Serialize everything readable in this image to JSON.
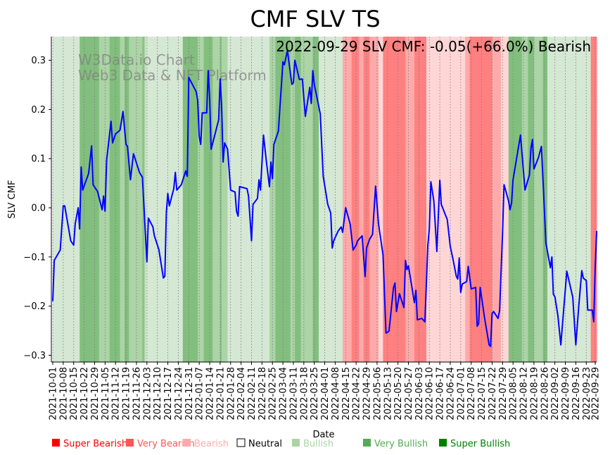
{
  "chart_data": {
    "type": "line",
    "title": "CMF SLV TS",
    "annotation": "2022-09-29 SLV CMF: -0.05(+66.0%) Bearish",
    "watermark": [
      "W3Data.io Chart",
      "Web3 Data & NFT Platform"
    ],
    "xlabel": "Date",
    "ylabel": "SLV CMF",
    "ylim": [
      -0.31,
      0.35
    ],
    "xlim_days": [
      0,
      364
    ],
    "start_date": "2021-10-01",
    "yticks": [
      0.3,
      0.2,
      0.1,
      0.0,
      -0.1,
      -0.2,
      -0.3
    ],
    "ytick_labels": [
      "0.3",
      "0.2",
      "0.1",
      "0.0",
      "−0.1",
      "−0.2",
      "−0.3"
    ],
    "xtick_labels": [
      "2021-10-01",
      "2021-10-08",
      "2021-10-15",
      "2021-10-22",
      "2021-10-29",
      "2021-11-05",
      "2021-11-12",
      "2021-11-19",
      "2021-11-26",
      "2021-12-03",
      "2021-12-10",
      "2021-12-17",
      "2021-12-24",
      "2021-12-31",
      "2022-01-07",
      "2022-01-14",
      "2022-01-21",
      "2022-01-28",
      "2022-02-04",
      "2022-02-11",
      "2022-02-18",
      "2022-02-25",
      "2022-03-04",
      "2022-03-11",
      "2022-03-18",
      "2022-03-25",
      "2022-04-01",
      "2022-04-08",
      "2022-04-15",
      "2022-04-22",
      "2022-04-29",
      "2022-05-06",
      "2022-05-13",
      "2022-05-20",
      "2022-05-27",
      "2022-06-03",
      "2022-06-10",
      "2022-06-17",
      "2022-06-24",
      "2022-07-01",
      "2022-07-08",
      "2022-07-15",
      "2022-07-22",
      "2022-07-29",
      "2022-08-05",
      "2022-08-12",
      "2022-08-19",
      "2022-08-26",
      "2022-09-02",
      "2022-09-09",
      "2022-09-16",
      "2022-09-23",
      "2022-09-29"
    ],
    "xtick_days": [
      0,
      7,
      14,
      21,
      28,
      35,
      42,
      49,
      56,
      63,
      70,
      77,
      84,
      91,
      98,
      105,
      112,
      119,
      126,
      133,
      140,
      147,
      154,
      161,
      168,
      175,
      182,
      189,
      196,
      203,
      210,
      217,
      224,
      231,
      238,
      245,
      252,
      259,
      266,
      273,
      280,
      287,
      294,
      301,
      308,
      315,
      322,
      329,
      336,
      343,
      350,
      357,
      363
    ],
    "grid": "vertical dotted",
    "series": [
      {
        "name": "SLV CMF",
        "color": "#0000ff",
        "points": [
          [
            0,
            -0.19
          ],
          [
            1,
            -0.107
          ],
          [
            5,
            -0.086
          ],
          [
            7,
            0.004
          ],
          [
            8,
            0.004
          ],
          [
            12,
            -0.067
          ],
          [
            14,
            -0.076
          ],
          [
            15,
            -0.033
          ],
          [
            17,
            0
          ],
          [
            18,
            -0.043
          ],
          [
            19,
            0.083
          ],
          [
            20,
            0.036
          ],
          [
            24,
            0.07
          ],
          [
            26,
            0.126
          ],
          [
            27,
            0.047
          ],
          [
            30,
            0.033
          ],
          [
            33,
            -0.004
          ],
          [
            34,
            0.024
          ],
          [
            35,
            -0.007
          ],
          [
            36,
            0.096
          ],
          [
            39,
            0.176
          ],
          [
            40,
            0.132
          ],
          [
            42,
            0.15
          ],
          [
            45,
            0.158
          ],
          [
            47,
            0.196
          ],
          [
            49,
            0.129
          ],
          [
            50,
            0.125
          ],
          [
            52,
            0.057
          ],
          [
            54,
            0.11
          ],
          [
            58,
            0.072
          ],
          [
            60,
            0.062
          ],
          [
            63,
            -0.11
          ],
          [
            64,
            -0.021
          ],
          [
            67,
            -0.039
          ],
          [
            68,
            -0.057
          ],
          [
            71,
            -0.085
          ],
          [
            74,
            -0.143
          ],
          [
            75,
            -0.139
          ],
          [
            76,
            -0.01
          ],
          [
            77,
            0.029
          ],
          [
            78,
            0.004
          ],
          [
            81,
            0.039
          ],
          [
            82,
            0.072
          ],
          [
            83,
            0.036
          ],
          [
            86,
            0.047
          ],
          [
            89,
            0.075
          ],
          [
            90,
            0.064
          ],
          [
            91,
            0.265
          ],
          [
            96,
            0.236
          ],
          [
            97,
            0.218
          ],
          [
            98,
            0.146
          ],
          [
            99,
            0.129
          ],
          [
            100,
            0.193
          ],
          [
            103,
            0.193
          ],
          [
            104,
            0.279
          ],
          [
            105,
            0.222
          ],
          [
            106,
            0.119
          ],
          [
            111,
            0.179
          ],
          [
            112,
            0.262
          ],
          [
            113,
            0.208
          ],
          [
            114,
            0.093
          ],
          [
            115,
            0.132
          ],
          [
            117,
            0.119
          ],
          [
            119,
            0.036
          ],
          [
            122,
            0.032
          ],
          [
            123,
            -0.007
          ],
          [
            124,
            -0.017
          ],
          [
            125,
            0.043
          ],
          [
            130,
            0.039
          ],
          [
            131,
            0.024
          ],
          [
            133,
            -0.067
          ],
          [
            134,
            0.007
          ],
          [
            137,
            0.019
          ],
          [
            138,
            0.057
          ],
          [
            139,
            0.036
          ],
          [
            141,
            0.148
          ],
          [
            143,
            0.093
          ],
          [
            145,
            0.043
          ],
          [
            146,
            0.093
          ],
          [
            147,
            0.059
          ],
          [
            148,
            0.129
          ],
          [
            151,
            0.156
          ],
          [
            154,
            0.297
          ],
          [
            155,
            0.291
          ],
          [
            157,
            0.32
          ],
          [
            160,
            0.251
          ],
          [
            161,
            0.254
          ],
          [
            162,
            0.3
          ],
          [
            165,
            0.261
          ],
          [
            167,
            0.262
          ],
          [
            169,
            0.186
          ],
          [
            172,
            0.245
          ],
          [
            173,
            0.212
          ],
          [
            174,
            0.279
          ],
          [
            175,
            0.251
          ],
          [
            179,
            0.191
          ],
          [
            181,
            0.064
          ],
          [
            184,
            0.007
          ],
          [
            186,
            -0.011
          ],
          [
            187,
            -0.082
          ],
          [
            188,
            -0.067
          ],
          [
            191,
            -0.047
          ],
          [
            193,
            -0.039
          ],
          [
            194,
            -0.05
          ],
          [
            196,
            0
          ],
          [
            199,
            -0.033
          ],
          [
            201,
            -0.086
          ],
          [
            203,
            -0.076
          ],
          [
            204,
            -0.067
          ],
          [
            207,
            -0.057
          ],
          [
            209,
            -0.14
          ],
          [
            210,
            -0.082
          ],
          [
            212,
            -0.064
          ],
          [
            214,
            -0.054
          ],
          [
            216,
            0.044
          ],
          [
            218,
            -0.033
          ],
          [
            221,
            -0.096
          ],
          [
            223,
            -0.255
          ],
          [
            225,
            -0.251
          ],
          [
            228,
            -0.162
          ],
          [
            229,
            -0.153
          ],
          [
            230,
            -0.211
          ],
          [
            232,
            -0.175
          ],
          [
            235,
            -0.203
          ],
          [
            236,
            -0.107
          ],
          [
            237,
            -0.126
          ],
          [
            238,
            -0.118
          ],
          [
            242,
            -0.193
          ],
          [
            243,
            -0.168
          ],
          [
            244,
            -0.228
          ],
          [
            247,
            -0.225
          ],
          [
            249,
            -0.232
          ],
          [
            251,
            -0.076
          ],
          [
            252,
            -0.043
          ],
          [
            253,
            0.053
          ],
          [
            255,
            0.014
          ],
          [
            257,
            -0.089
          ],
          [
            259,
            0.056
          ],
          [
            260,
            0.007
          ],
          [
            264,
            -0.024
          ],
          [
            266,
            -0.079
          ],
          [
            268,
            -0.107
          ],
          [
            270,
            -0.139
          ],
          [
            271,
            -0.145
          ],
          [
            272,
            -0.102
          ],
          [
            273,
            -0.172
          ],
          [
            274,
            -0.155
          ],
          [
            277,
            -0.15
          ],
          [
            278,
            -0.119
          ],
          [
            280,
            -0.165
          ],
          [
            283,
            -0.162
          ],
          [
            284,
            -0.241
          ],
          [
            285,
            -0.236
          ],
          [
            286,
            -0.162
          ],
          [
            289,
            -0.225
          ],
          [
            292,
            -0.279
          ],
          [
            293,
            -0.282
          ],
          [
            294,
            -0.215
          ],
          [
            295,
            -0.211
          ],
          [
            298,
            -0.225
          ],
          [
            299,
            -0.209
          ],
          [
            301,
            -0.05
          ],
          [
            302,
            0.047
          ],
          [
            305,
            0.014
          ],
          [
            306,
            -0.004
          ],
          [
            307,
            0.01
          ],
          [
            308,
            0.057
          ],
          [
            313,
            0.148
          ],
          [
            314,
            0.11
          ],
          [
            316,
            0.036
          ],
          [
            319,
            0.067
          ],
          [
            320,
            0.122
          ],
          [
            321,
            0.139
          ],
          [
            322,
            0.079
          ],
          [
            325,
            0.102
          ],
          [
            327,
            0.125
          ],
          [
            328,
            0.059
          ],
          [
            330,
            -0.072
          ],
          [
            333,
            -0.122
          ],
          [
            334,
            -0.1
          ],
          [
            335,
            -0.176
          ],
          [
            336,
            -0.181
          ],
          [
            338,
            -0.219
          ],
          [
            340,
            -0.279
          ],
          [
            344,
            -0.129
          ],
          [
            348,
            -0.182
          ],
          [
            350,
            -0.279
          ],
          [
            352,
            -0.2
          ],
          [
            354,
            -0.128
          ],
          [
            355,
            -0.143
          ],
          [
            357,
            -0.148
          ],
          [
            358,
            -0.208
          ],
          [
            361,
            -0.208
          ],
          [
            362,
            -0.232
          ],
          [
            363,
            -0.12
          ],
          [
            364,
            -0.047
          ]
        ]
      }
    ],
    "bands": [
      [
        0,
        18,
        "B"
      ],
      [
        18,
        31,
        "SB"
      ],
      [
        31,
        38,
        "VB"
      ],
      [
        38,
        45,
        "SB"
      ],
      [
        45,
        48,
        "VB"
      ],
      [
        48,
        51,
        "SB"
      ],
      [
        51,
        60,
        "VB"
      ],
      [
        60,
        61,
        "SB"
      ],
      [
        61,
        62,
        "VB"
      ],
      [
        62,
        87,
        "B"
      ],
      [
        87,
        97,
        "SB"
      ],
      [
        97,
        101,
        "VB"
      ],
      [
        101,
        107,
        "SB"
      ],
      [
        107,
        112,
        "VB"
      ],
      [
        112,
        113,
        "SB"
      ],
      [
        113,
        117,
        "VB"
      ],
      [
        117,
        145,
        "B"
      ],
      [
        145,
        149,
        "VB"
      ],
      [
        149,
        159,
        "SB"
      ],
      [
        159,
        162,
        "VB"
      ],
      [
        162,
        166,
        "SB"
      ],
      [
        166,
        174,
        "VB"
      ],
      [
        174,
        178,
        "SB"
      ],
      [
        178,
        194,
        "B"
      ],
      [
        194,
        200,
        "VBe"
      ],
      [
        200,
        205,
        "SBe"
      ],
      [
        205,
        208,
        "VBe"
      ],
      [
        208,
        212,
        "SBe"
      ],
      [
        212,
        218,
        "VBe"
      ],
      [
        218,
        221,
        "Be"
      ],
      [
        221,
        236,
        "SBe"
      ],
      [
        236,
        242,
        "VBe"
      ],
      [
        242,
        250,
        "SBe"
      ],
      [
        250,
        276,
        "Be"
      ],
      [
        276,
        279,
        "VBe"
      ],
      [
        279,
        294,
        "SBe"
      ],
      [
        294,
        300,
        "VBe"
      ],
      [
        300,
        305,
        "Be"
      ],
      [
        305,
        314,
        "SB"
      ],
      [
        314,
        318,
        "VB"
      ],
      [
        318,
        322,
        "SB"
      ],
      [
        322,
        328,
        "VB"
      ],
      [
        328,
        331,
        "SB"
      ],
      [
        331,
        360,
        "B"
      ],
      [
        360,
        364,
        "SBe"
      ]
    ],
    "band_colors": {
      "B": "#d5e8d4",
      "VB": "#acd4a7",
      "SB": "#82bf7e",
      "Be": "#ffd6d6",
      "VBe": "#ffaaaa",
      "SBe": "#ff8080"
    },
    "legend": {
      "placement": "bottom",
      "items": [
        {
          "label": "Super Bearish",
          "color": "#ff0000",
          "text_color": "#ff0000"
        },
        {
          "label": "Very Bearish",
          "color": "#ff5555",
          "text_color": "#ff5555"
        },
        {
          "label": "Bearish",
          "color": "#ffaaaa",
          "text_color": "#ffaaaa"
        },
        {
          "label": "Neutral",
          "color": "#ffffff",
          "text_color": "#000000"
        },
        {
          "label": "Bullish",
          "color": "#aad4a6",
          "text_color": "#aad4a6"
        },
        {
          "label": "Very Bullish",
          "color": "#55aa55",
          "text_color": "#55aa55"
        },
        {
          "label": "Super Bullish",
          "color": "#008000",
          "text_color": "#008000"
        }
      ]
    }
  }
}
